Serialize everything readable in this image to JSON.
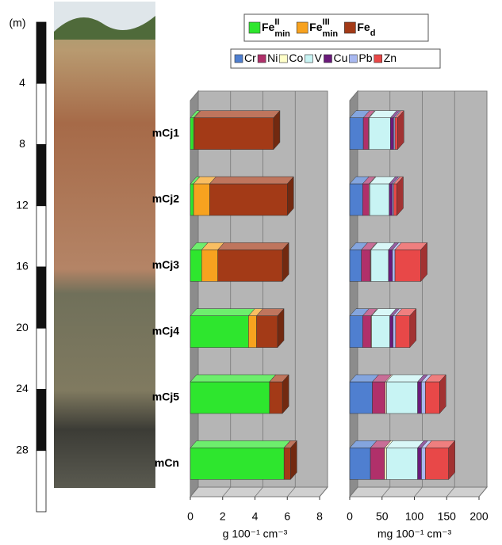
{
  "chart_data": [
    {
      "type": "scale",
      "ylabel": "(m)",
      "ylim": [
        0,
        32
      ],
      "yticks": [
        4,
        8,
        12,
        16,
        20,
        24,
        28
      ]
    },
    {
      "type": "bar3d",
      "xlabel": "g 100⁻¹ cm⁻³",
      "categories": [
        "mCj1",
        "mCj2",
        "mCj3",
        "mCj4",
        "mCj5",
        "mCn"
      ],
      "series": [
        {
          "name": "Fe",
          "sup": "II",
          "sub": "min",
          "color": "#2ee62e",
          "values": [
            0.2,
            0.2,
            0.7,
            3.6,
            4.9,
            5.8
          ]
        },
        {
          "name": "Fe",
          "sup": "III",
          "sub": "min",
          "color": "#f7a21f",
          "values": [
            0.05,
            1.0,
            1.0,
            0.5,
            0,
            0
          ]
        },
        {
          "name": "Fe",
          "sub": "d",
          "color": "#a33a17",
          "values": [
            4.9,
            4.8,
            4.0,
            1.3,
            0.8,
            0.4
          ]
        }
      ],
      "xlim": [
        0,
        8
      ],
      "xticks": [
        0,
        2,
        4,
        6,
        8
      ],
      "grid": true
    },
    {
      "type": "bar3d",
      "xlabel": "mg 100⁻¹ cm⁻³",
      "series": [
        {
          "name": "Cr",
          "color": "#4f7fd0",
          "values": [
            21,
            20,
            18,
            20,
            35,
            32
          ]
        },
        {
          "name": "Ni",
          "color": "#b0306a",
          "values": [
            8,
            10,
            14,
            13,
            20,
            22
          ]
        },
        {
          "name": "Co",
          "color": "#ffffc8",
          "values": [
            1,
            1,
            1,
            1,
            2,
            3
          ]
        },
        {
          "name": "V",
          "color": "#c8f4f4",
          "values": [
            33,
            30,
            27,
            28,
            48,
            48
          ]
        },
        {
          "name": "Cu",
          "color": "#6a1a7a",
          "values": [
            5,
            5,
            6,
            5,
            6,
            6
          ]
        },
        {
          "name": "Pb",
          "color": "#a8b8f0",
          "values": [
            2,
            2,
            4,
            4,
            6,
            6
          ]
        },
        {
          "name": "Zn",
          "color": "#e84848",
          "values": [
            4,
            5,
            40,
            22,
            22,
            36
          ]
        }
      ],
      "xlim": [
        0,
        200
      ],
      "xticks": [
        0,
        50,
        100,
        150,
        200
      ],
      "grid": true
    }
  ]
}
